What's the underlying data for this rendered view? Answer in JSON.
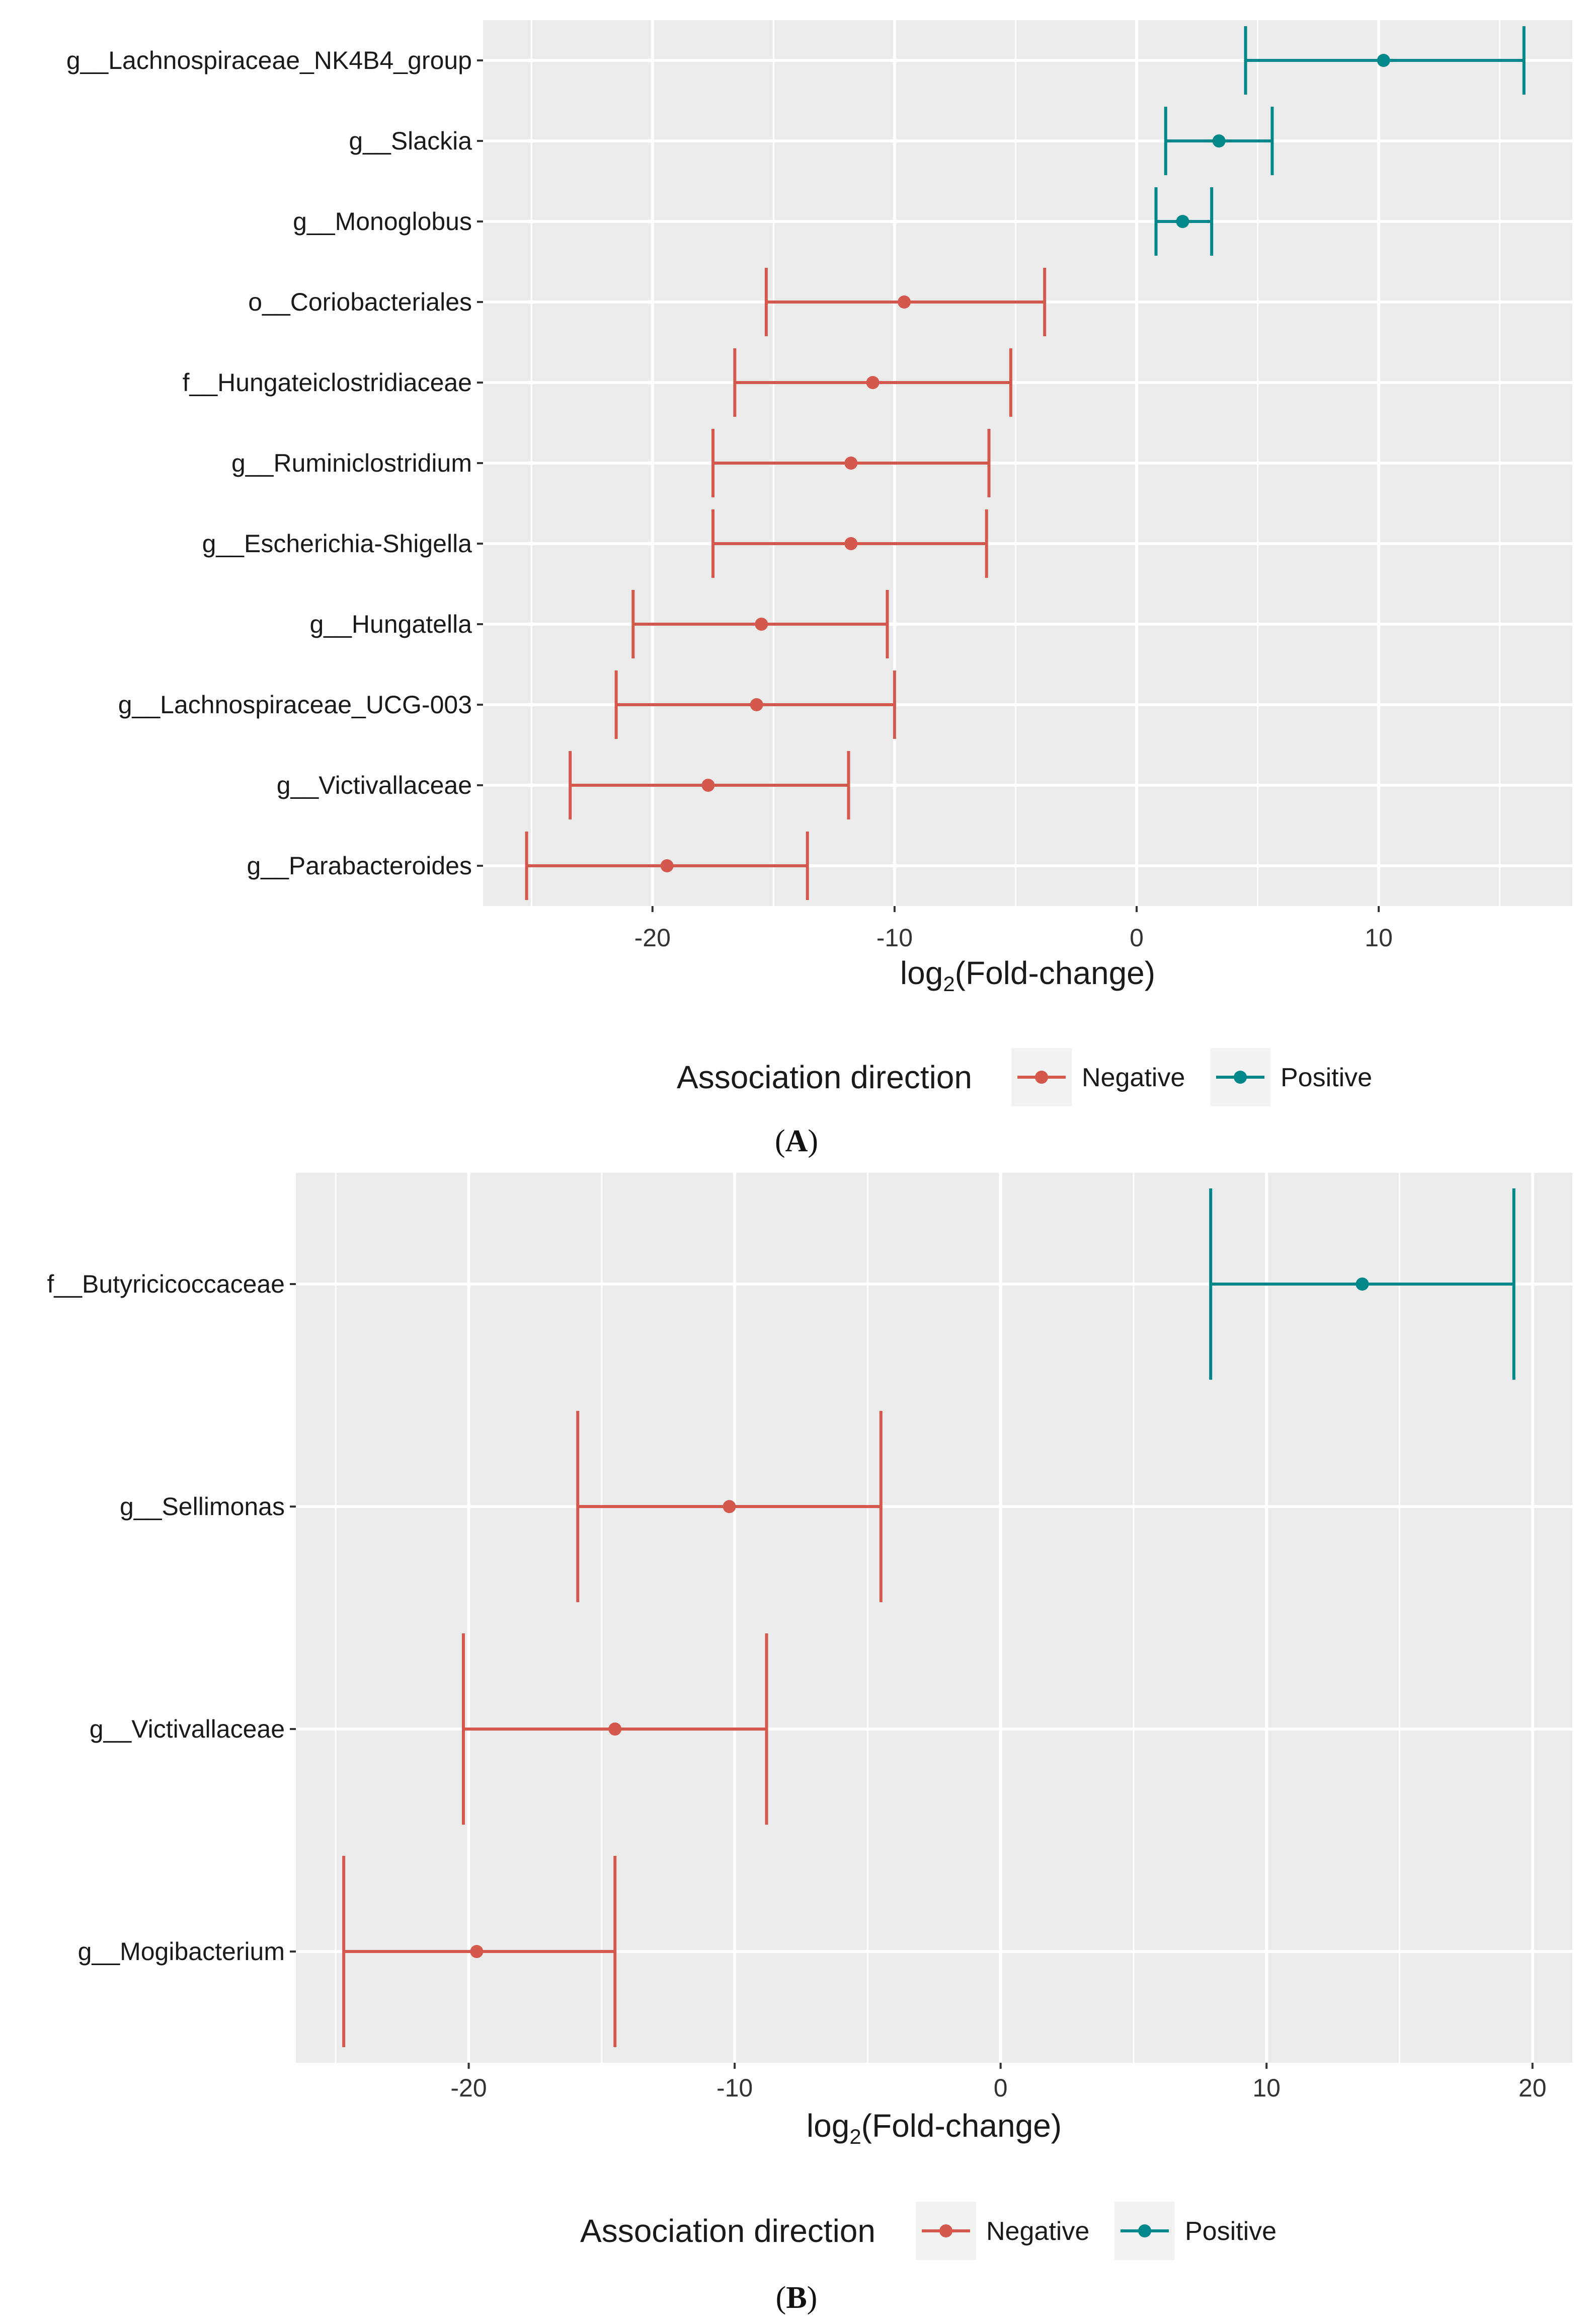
{
  "colors": {
    "negative": "#d4584b",
    "positive": "#00878a",
    "panel_bg": "#ebebeb",
    "grid": "#ffffff"
  },
  "chart_data": [
    {
      "panel": "A",
      "type": "errorbar",
      "xlabel_main": "log",
      "xlabel_sub": "2",
      "xlabel_rest": "(Fold-change)",
      "xlim": [
        -27,
        18
      ],
      "xticks": [
        "-20",
        "-10",
        "0",
        "10"
      ],
      "xtick_values": [
        -20,
        -10,
        0,
        10
      ],
      "legend_title": "Association direction",
      "legend": [
        "Negative",
        "Positive"
      ],
      "categories": [
        "g__Lachnospiraceae_NK4B4_group",
        "g__Slackia",
        "g__Monoglobus",
        "o__Coriobacteriales",
        "f__Hungateiclostridiaceae",
        "g__Ruminiclostridium",
        "g__Escherichia-Shigella",
        "g__Hungatella",
        "g__Lachnospiraceae_UCG-003",
        "g__Victivallaceae",
        "g__Parabacteroides"
      ],
      "estimates": [
        10.2,
        3.4,
        1.9,
        -9.6,
        -10.9,
        -11.8,
        -11.8,
        -15.5,
        -15.7,
        -17.7,
        -19.4
      ],
      "lower": [
        4.5,
        1.2,
        0.8,
        -15.3,
        -16.6,
        -17.5,
        -17.5,
        -20.8,
        -21.5,
        -23.4,
        -25.2
      ],
      "upper": [
        16.0,
        5.6,
        3.1,
        -3.8,
        -5.2,
        -6.1,
        -6.2,
        -10.3,
        -10.0,
        -11.9,
        -13.6
      ],
      "direction": [
        "Positive",
        "Positive",
        "Positive",
        "Negative",
        "Negative",
        "Negative",
        "Negative",
        "Negative",
        "Negative",
        "Negative",
        "Negative"
      ]
    },
    {
      "panel": "B",
      "type": "errorbar",
      "xlabel_main": "log",
      "xlabel_sub": "2",
      "xlabel_rest": "(Fold-change)",
      "xlim": [
        -26.5,
        21.5
      ],
      "xticks": [
        "-20",
        "-10",
        "0",
        "10",
        "20"
      ],
      "xtick_values": [
        -20,
        -10,
        0,
        10,
        20
      ],
      "legend_title": "Association direction",
      "legend": [
        "Negative",
        "Positive"
      ],
      "categories": [
        "f__Butyricicoccaceae",
        "g__Sellimonas",
        "g__Victivallaceae",
        "g__Mogibacterium"
      ],
      "estimates": [
        13.6,
        -10.2,
        -14.5,
        -19.7
      ],
      "lower": [
        7.9,
        -15.9,
        -20.2,
        -24.7
      ],
      "upper": [
        19.3,
        -4.5,
        -8.8,
        -14.5
      ],
      "direction": [
        "Positive",
        "Negative",
        "Negative",
        "Negative"
      ]
    }
  ],
  "panel_labels": [
    {
      "open": "(",
      "letter": "A",
      "close": ")"
    },
    {
      "open": "(",
      "letter": "B",
      "close": ")"
    }
  ]
}
